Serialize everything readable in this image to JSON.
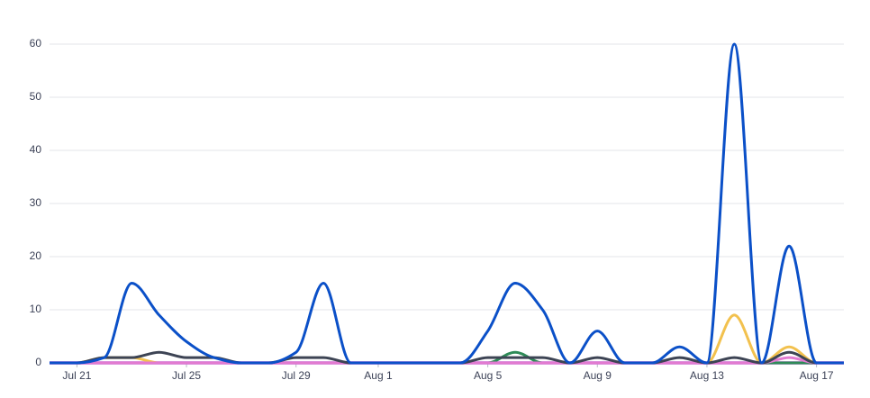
{
  "chart_data": {
    "type": "line",
    "categories": [
      null,
      "Jul 21",
      null,
      null,
      null,
      "Jul 25",
      null,
      null,
      null,
      "Jul 29",
      null,
      null,
      "Aug 1",
      null,
      null,
      null,
      "Aug 5",
      null,
      null,
      null,
      "Aug 9",
      null,
      null,
      null,
      "Aug 13",
      null,
      null,
      null,
      "Aug 17",
      null
    ],
    "ylim": [
      0,
      60
    ],
    "yticks": [
      0,
      10,
      20,
      30,
      40,
      50,
      60
    ],
    "grid": true,
    "series": [
      {
        "color": "#b14fd6",
        "values": [
          0,
          0,
          0,
          0,
          0,
          0,
          0,
          0,
          0,
          0,
          0,
          0,
          0,
          0,
          0,
          0,
          0,
          0,
          0,
          0,
          0,
          0,
          0,
          0,
          0,
          0,
          0,
          0,
          0,
          0
        ]
      },
      {
        "color": "#f2c14e",
        "values": [
          0,
          0,
          1,
          1,
          0,
          0,
          0,
          0,
          0,
          0,
          0,
          0,
          0,
          0,
          0,
          0,
          0,
          0,
          0,
          0,
          0,
          0,
          0,
          0,
          0,
          9,
          0,
          3,
          0,
          0
        ]
      },
      {
        "color": "#2e8b57",
        "values": [
          0,
          0,
          0,
          0,
          0,
          0,
          0,
          0,
          0,
          0,
          0,
          0,
          0,
          0,
          0,
          0,
          0,
          2,
          0,
          0,
          0,
          0,
          0,
          0,
          0,
          0,
          0,
          0,
          0,
          0
        ]
      },
      {
        "color": "#e27ad0",
        "values": [
          0,
          0,
          0,
          0,
          0,
          0,
          0,
          0,
          0,
          0,
          0,
          0,
          0,
          0,
          0,
          0,
          0,
          0,
          0,
          0,
          0,
          0,
          0,
          0,
          0,
          0,
          0,
          1,
          0,
          0
        ]
      },
      {
        "color": "#3d4454",
        "values": [
          0,
          0,
          1,
          1,
          2,
          1,
          1,
          0,
          0,
          1,
          1,
          0,
          0,
          0,
          0,
          0,
          1,
          1,
          1,
          0,
          1,
          0,
          0,
          1,
          0,
          1,
          0,
          2,
          0,
          0
        ]
      },
      {
        "color": "#0b50c8",
        "values": [
          0,
          0,
          1,
          15,
          9,
          4,
          1,
          0,
          0,
          2,
          15,
          0,
          0,
          0,
          0,
          0,
          6,
          15,
          10,
          0,
          6,
          0,
          0,
          3,
          0,
          60,
          0,
          22,
          0,
          0
        ]
      }
    ]
  }
}
